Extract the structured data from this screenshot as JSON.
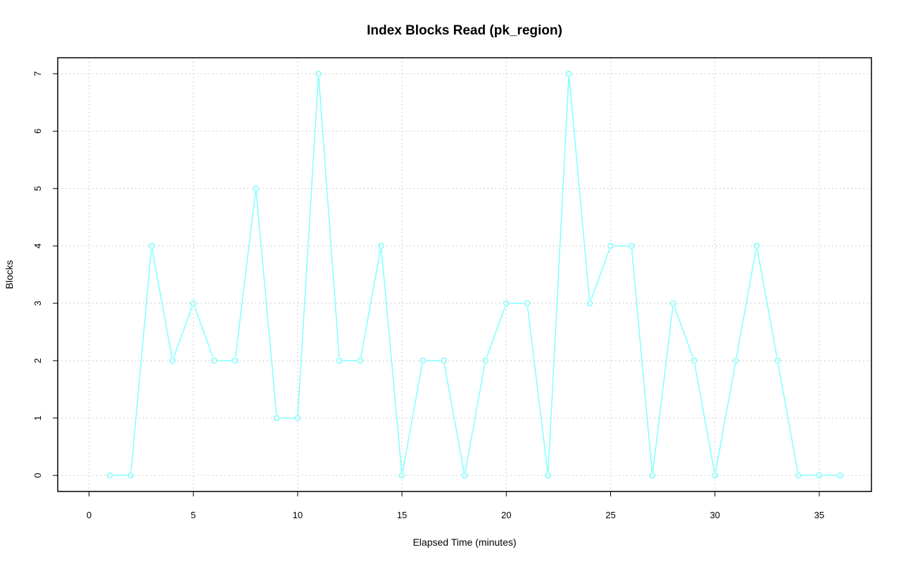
{
  "chart_data": {
    "type": "line",
    "title": "Index Blocks Read (pk_region)",
    "xlabel": "Elapsed Time (minutes)",
    "ylabel": "Blocks",
    "xlim": [
      -1.5,
      37.5
    ],
    "ylim": [
      -0.28,
      7.28
    ],
    "xticks": [
      0,
      5,
      10,
      15,
      20,
      25,
      30,
      35
    ],
    "yticks": [
      0,
      1,
      2,
      3,
      4,
      5,
      6,
      7
    ],
    "grid": true,
    "series": [
      {
        "color": "#7fffff",
        "x": [
          1,
          2,
          3,
          4,
          5,
          6,
          7,
          8,
          9,
          10,
          11,
          12,
          13,
          14,
          15,
          16,
          17,
          18,
          19,
          20,
          21,
          22,
          23,
          24,
          25,
          26,
          27,
          28,
          29,
          30,
          31,
          32,
          33,
          34,
          35,
          36
        ],
        "y": [
          0,
          0,
          4,
          2,
          3,
          2,
          2,
          5,
          1,
          1,
          7,
          2,
          2,
          4,
          0,
          2,
          2,
          0,
          2,
          3,
          3,
          0,
          7,
          3,
          4,
          4,
          0,
          3,
          2,
          0,
          2,
          4,
          2,
          0,
          0,
          0
        ]
      }
    ]
  }
}
